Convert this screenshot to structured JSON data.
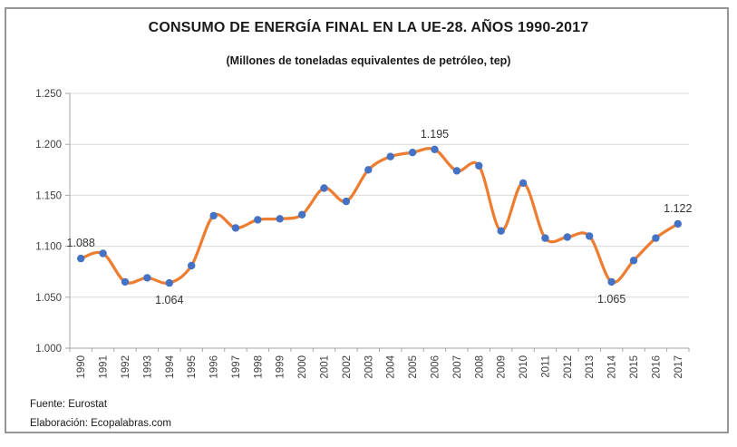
{
  "header": {
    "title": "CONSUMO DE ENERGÍA FINAL EN LA UE-28. AÑOS 1990-2017",
    "subtitle": "(Millones de toneladas equivalentes de petróleo, tep)"
  },
  "footer": {
    "source": "Fuente: Eurostat",
    "elaboration": "Elaboración: Ecopalabras.com"
  },
  "colors": {
    "line": "#ED7D31",
    "marker": "#4472C4",
    "grid": "#D9D9D9",
    "axis": "#A6A6A6",
    "frame": "#969696",
    "label_text": "#404040"
  },
  "chart_data": {
    "type": "line",
    "title": "CONSUMO DE ENERGÍA FINAL EN LA UE-28. AÑOS 1990-2017",
    "subtitle": "(Millones de toneladas equivalentes de petróleo, tep)",
    "x": [
      1990,
      1991,
      1992,
      1993,
      1994,
      1995,
      1996,
      1997,
      1998,
      1999,
      2000,
      2001,
      2002,
      2003,
      2004,
      2005,
      2006,
      2007,
      2008,
      2009,
      2010,
      2011,
      2012,
      2013,
      2014,
      2015,
      2016,
      2017
    ],
    "values": [
      1088,
      1093,
      1065,
      1069,
      1064,
      1081,
      1130,
      1118,
      1126,
      1127,
      1131,
      1157,
      1144,
      1175,
      1188,
      1192,
      1195,
      1174,
      1179,
      1115,
      1162,
      1108,
      1109,
      1110,
      1065,
      1086,
      1108,
      1122
    ],
    "ylim": [
      1000,
      1250
    ],
    "yticks": [
      1000,
      1050,
      1100,
      1150,
      1200,
      1250
    ],
    "ytick_labels": [
      "1.000",
      "1.050",
      "1.100",
      "1.150",
      "1.200",
      "1.250"
    ],
    "xlabel": "",
    "ylabel": "",
    "grid": true,
    "legend": "none",
    "smooth": true,
    "marker": "circle",
    "annotations": [
      {
        "year": 1990,
        "text": "1.088",
        "position": "above"
      },
      {
        "year": 1994,
        "text": "1.064",
        "position": "below"
      },
      {
        "year": 2006,
        "text": "1.195",
        "position": "above"
      },
      {
        "year": 2014,
        "text": "1.065",
        "position": "below"
      },
      {
        "year": 2017,
        "text": "1.122",
        "position": "above"
      }
    ]
  }
}
